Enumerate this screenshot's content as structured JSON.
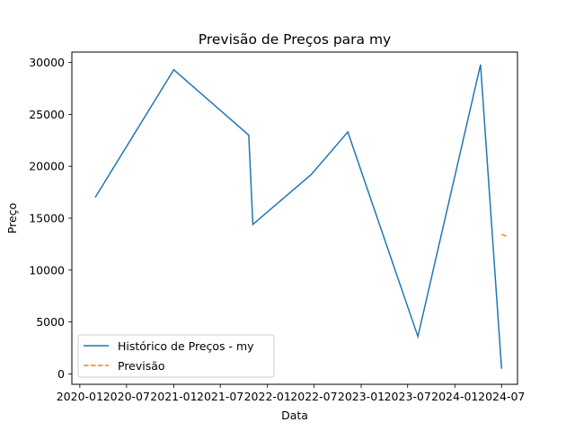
{
  "chart_data": {
    "type": "line",
    "title": "Previsão de Preços para my",
    "xlabel": "Data",
    "ylabel": "Preço",
    "x_ticks": [
      "2020-01",
      "2020-07",
      "2021-01",
      "2021-07",
      "2022-01",
      "2022-07",
      "2023-01",
      "2023-07",
      "2024-01",
      "2024-07"
    ],
    "y_ticks": [
      "0",
      "5000",
      "10000",
      "15000",
      "20000",
      "25000",
      "30000"
    ],
    "xlim": [
      "2019-12-01",
      "2024-09-01"
    ],
    "ylim": [
      -1000,
      31000
    ],
    "grid": false,
    "legend_position": "lower-left",
    "series": [
      {
        "name": "Histórico de Preços - my",
        "color": "#1f77b4",
        "style": "solid",
        "points": [
          {
            "x": "2020-03-01",
            "y": 17000
          },
          {
            "x": "2021-01-01",
            "y": 29300
          },
          {
            "x": "2021-10-20",
            "y": 23000
          },
          {
            "x": "2021-11-05",
            "y": 14400
          },
          {
            "x": "2022-06-20",
            "y": 19200
          },
          {
            "x": "2022-11-10",
            "y": 23300
          },
          {
            "x": "2023-08-10",
            "y": 3600
          },
          {
            "x": "2024-04-10",
            "y": 29800
          },
          {
            "x": "2024-07-01",
            "y": 500
          }
        ]
      },
      {
        "name": "Previsão",
        "color": "#ff7f0e",
        "style": "dashed",
        "points": [
          {
            "x": "2024-07-01",
            "y": 13450
          },
          {
            "x": "2024-07-20",
            "y": 13250
          }
        ]
      }
    ]
  }
}
